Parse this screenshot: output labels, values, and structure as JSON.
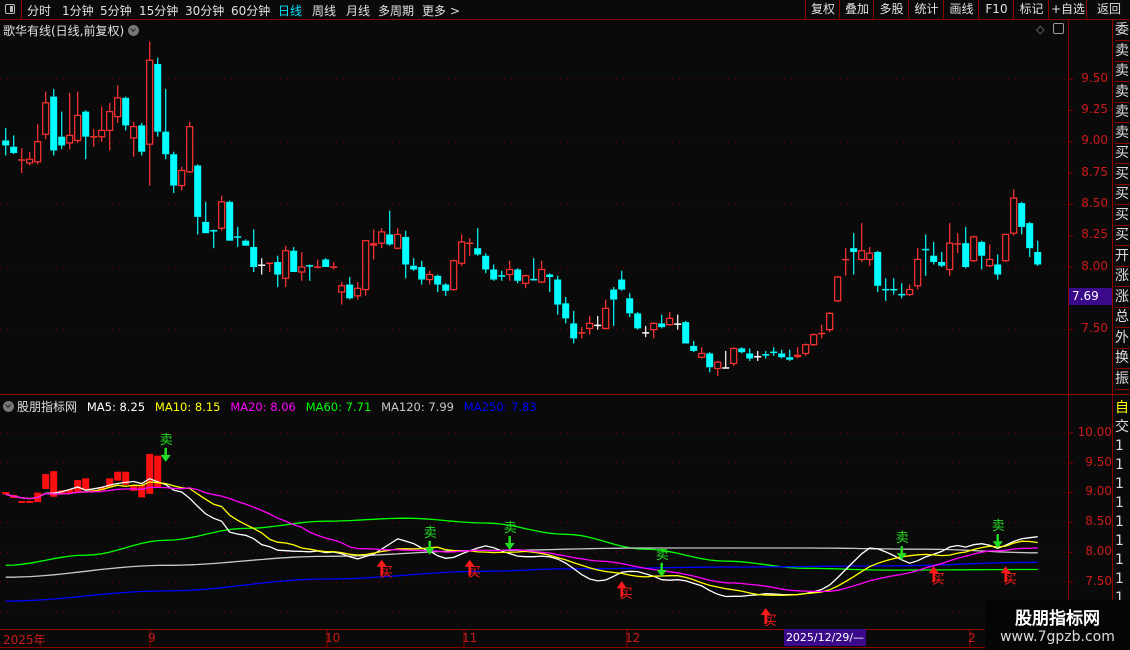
{
  "toolbar": {
    "tabs": [
      "分时",
      "1分钟",
      "5分钟",
      "15分钟",
      "30分钟",
      "60分钟",
      "日线",
      "周线",
      "月线",
      "多周期",
      "更多 >"
    ],
    "active_tab": "日线",
    "buttons": [
      "复权",
      "叠加",
      "多股",
      "统计",
      "画线",
      "F10",
      "标记",
      "+自选",
      "返回"
    ]
  },
  "main_panel": {
    "title": "歌华有线(日线,前复权)",
    "y_ticks": [
      "9.50",
      "9.25",
      "9.00",
      "8.75",
      "8.50",
      "8.25",
      "8.00",
      "7.50"
    ],
    "current_price_label": "7.69"
  },
  "indicator_panel": {
    "name": "股朋指标网",
    "ma_legend": [
      {
        "label": "MA5: 8.25",
        "color": "#ffffff"
      },
      {
        "label": "MA10: 8.15",
        "color": "#ffff00"
      },
      {
        "label": "MA20: 8.06",
        "color": "#ff00ff"
      },
      {
        "label": "MA60: 7.71",
        "color": "#00ff00"
      },
      {
        "label": "MA120: 7.99",
        "color": "#c8c8c8"
      },
      {
        "label": "MA250: 7.83",
        "color": "#0000ff"
      }
    ],
    "y_ticks": [
      "10.00",
      "9.50",
      "9.00",
      "8.50",
      "8.00",
      "7.50"
    ],
    "sell_label": "卖",
    "buy_label": "买"
  },
  "x_axis": {
    "labels": [
      "2025年",
      "9",
      "10",
      "11",
      "12",
      "2"
    ],
    "highlight_date": "2025/12/29/—"
  },
  "right_strip": {
    "top_chars": [
      "委",
      "卖",
      "卖",
      "卖",
      "卖",
      "卖",
      "买",
      "买",
      "买",
      "买",
      "买",
      "开",
      "涨",
      "涨",
      "总",
      "外",
      "换",
      "振"
    ],
    "bottom_chars": [
      "自",
      "交",
      "1",
      "1",
      "1",
      "1",
      "1",
      "1",
      "1",
      "1",
      "1",
      "1"
    ]
  },
  "watermark": {
    "title": "股朋指标网",
    "url": "www.7gpzb.com"
  },
  "colors": {
    "up": "#ff3333",
    "down": "#00ffff",
    "flat": "#ffffff",
    "grid": "#7a0000",
    "frame": "#8b0000",
    "sell": "#22dd22",
    "buy": "#ff1a1a"
  },
  "chart_data": {
    "type": "candlestick",
    "ylim_main": [
      7.1,
      9.85
    ],
    "ylim_indicator": [
      6.9,
      10.25
    ],
    "ohlc": [
      [
        9.01,
        9.11,
        8.89,
        8.97
      ],
      [
        8.96,
        9.05,
        8.9,
        8.91
      ],
      [
        8.85,
        8.95,
        8.75,
        8.86
      ],
      [
        8.83,
        8.92,
        8.81,
        8.86
      ],
      [
        8.84,
        9.14,
        8.82,
        9.0
      ],
      [
        9.06,
        9.4,
        9.02,
        9.31
      ],
      [
        9.36,
        9.42,
        8.89,
        8.93
      ],
      [
        9.04,
        9.24,
        8.94,
        8.97
      ],
      [
        8.99,
        9.39,
        8.94,
        9.05
      ],
      [
        9.01,
        9.4,
        8.99,
        9.21
      ],
      [
        9.24,
        9.25,
        8.86,
        9.04
      ],
      [
        9.035,
        9.1,
        8.96,
        9.045
      ],
      [
        9.04,
        9.28,
        9.0,
        9.09
      ],
      [
        9.09,
        9.31,
        8.93,
        9.24
      ],
      [
        9.2,
        9.45,
        9.15,
        9.35
      ],
      [
        9.35,
        9.36,
        9.09,
        9.13
      ],
      [
        9.03,
        9.16,
        8.88,
        9.12
      ],
      [
        9.13,
        9.15,
        8.89,
        8.92
      ],
      [
        8.98,
        9.8,
        8.65,
        9.65
      ],
      [
        9.62,
        9.67,
        9.04,
        9.08
      ],
      [
        9.08,
        9.42,
        8.86,
        8.9
      ],
      [
        8.9,
        8.92,
        8.59,
        8.65
      ],
      [
        8.65,
        8.8,
        8.61,
        8.77
      ],
      [
        8.76,
        9.16,
        8.75,
        9.12
      ],
      [
        8.81,
        8.82,
        8.26,
        8.4
      ],
      [
        8.36,
        8.52,
        8.27,
        8.27
      ],
      [
        8.295,
        8.3,
        8.15,
        8.285
      ],
      [
        8.31,
        8.57,
        8.29,
        8.52
      ],
      [
        8.52,
        8.53,
        8.21,
        8.21
      ],
      [
        8.245,
        8.32,
        8.16,
        8.235
      ],
      [
        8.21,
        8.22,
        8.17,
        8.17
      ],
      [
        8.16,
        8.3,
        7.96,
        8.0
      ],
      [
        8.02,
        8.07,
        7.94,
        8.02
      ],
      [
        8.025,
        8.03,
        7.96,
        8.035
      ],
      [
        8.04,
        8.09,
        7.84,
        7.94
      ],
      [
        7.91,
        8.17,
        7.84,
        8.13
      ],
      [
        8.13,
        8.16,
        7.96,
        7.96
      ],
      [
        7.96,
        8.12,
        7.89,
        8.0
      ],
      [
        8.015,
        8.02,
        7.89,
        8.005
      ],
      [
        7.995,
        8.06,
        7.99,
        8.005
      ],
      [
        8.06,
        8.07,
        8.0,
        8.0
      ],
      [
        7.995,
        8.04,
        7.98,
        8.005
      ],
      [
        7.8,
        7.88,
        7.7,
        7.85
      ],
      [
        7.86,
        7.92,
        7.74,
        7.75
      ],
      [
        7.77,
        7.88,
        7.74,
        7.83
      ],
      [
        7.82,
        8.21,
        7.77,
        8.21
      ],
      [
        8.17,
        8.3,
        8.06,
        8.19
      ],
      [
        8.19,
        8.31,
        8.15,
        8.28
      ],
      [
        8.26,
        8.45,
        8.17,
        8.18
      ],
      [
        8.15,
        8.31,
        8.14,
        8.26
      ],
      [
        8.24,
        8.29,
        7.91,
        8.02
      ],
      [
        8.01,
        8.07,
        7.97,
        7.98
      ],
      [
        8.0,
        8.05,
        7.86,
        7.9
      ],
      [
        7.9,
        7.97,
        7.86,
        7.94
      ],
      [
        7.93,
        7.94,
        7.8,
        7.86
      ],
      [
        7.86,
        7.87,
        7.77,
        7.81
      ],
      [
        7.82,
        8.06,
        7.81,
        8.05
      ],
      [
        8.03,
        8.26,
        8.01,
        8.2
      ],
      [
        8.185,
        8.23,
        8.09,
        8.195
      ],
      [
        8.15,
        8.31,
        8.09,
        8.1
      ],
      [
        8.09,
        8.11,
        7.95,
        7.98
      ],
      [
        7.98,
        8.02,
        7.89,
        7.9
      ],
      [
        7.935,
        7.97,
        7.89,
        7.925
      ],
      [
        7.94,
        8.05,
        7.89,
        7.98
      ],
      [
        7.98,
        7.99,
        7.87,
        7.89
      ],
      [
        7.87,
        7.94,
        7.83,
        7.93
      ],
      [
        7.905,
        8.07,
        7.89,
        7.895
      ],
      [
        7.88,
        8.05,
        7.87,
        7.98
      ],
      [
        7.94,
        7.95,
        7.8,
        7.92
      ],
      [
        7.9,
        7.93,
        7.62,
        7.7
      ],
      [
        7.71,
        7.76,
        7.55,
        7.59
      ],
      [
        7.55,
        7.65,
        7.39,
        7.43
      ],
      [
        7.47,
        7.52,
        7.43,
        7.48
      ],
      [
        7.51,
        7.61,
        7.46,
        7.55
      ],
      [
        7.54,
        7.61,
        7.5,
        7.54
      ],
      [
        7.51,
        7.74,
        7.5,
        7.67
      ],
      [
        7.82,
        7.84,
        7.53,
        7.74
      ],
      [
        7.9,
        7.97,
        7.81,
        7.82
      ],
      [
        7.75,
        7.79,
        7.6,
        7.63
      ],
      [
        7.63,
        7.64,
        7.5,
        7.51
      ],
      [
        7.48,
        7.53,
        7.44,
        7.48
      ],
      [
        7.5,
        7.56,
        7.43,
        7.55
      ],
      [
        7.55,
        7.62,
        7.51,
        7.52
      ],
      [
        7.54,
        7.64,
        7.53,
        7.59
      ],
      [
        7.55,
        7.62,
        7.5,
        7.55
      ],
      [
        7.56,
        7.57,
        7.39,
        7.39
      ],
      [
        7.37,
        7.41,
        7.32,
        7.33
      ],
      [
        7.28,
        7.36,
        7.27,
        7.31
      ],
      [
        7.31,
        7.32,
        7.16,
        7.2
      ],
      [
        7.19,
        7.25,
        7.13,
        7.24
      ],
      [
        7.2,
        7.33,
        7.19,
        7.2
      ],
      [
        7.23,
        7.36,
        7.21,
        7.35
      ],
      [
        7.35,
        7.36,
        7.31,
        7.32
      ],
      [
        7.31,
        7.35,
        7.25,
        7.27
      ],
      [
        7.29,
        7.33,
        7.25,
        7.29
      ],
      [
        7.305,
        7.33,
        7.27,
        7.295
      ],
      [
        7.325,
        7.36,
        7.29,
        7.315
      ],
      [
        7.31,
        7.34,
        7.27,
        7.28
      ],
      [
        7.28,
        7.34,
        7.25,
        7.26
      ],
      [
        7.28,
        7.36,
        7.27,
        7.3
      ],
      [
        7.31,
        7.39,
        7.29,
        7.38
      ],
      [
        7.38,
        7.47,
        7.37,
        7.46
      ],
      [
        7.465,
        7.54,
        7.43,
        7.475
      ],
      [
        7.5,
        7.64,
        7.48,
        7.63
      ],
      [
        7.73,
        7.93,
        7.72,
        7.92
      ],
      [
        8.055,
        8.15,
        7.93,
        8.065
      ],
      [
        8.15,
        8.27,
        7.94,
        8.12
      ],
      [
        8.06,
        8.35,
        8.04,
        8.13
      ],
      [
        8.06,
        8.16,
        8.01,
        8.11
      ],
      [
        8.12,
        8.13,
        7.8,
        7.85
      ],
      [
        7.825,
        7.91,
        7.73,
        7.815
      ],
      [
        7.825,
        7.91,
        7.78,
        7.815
      ],
      [
        7.785,
        7.87,
        7.75,
        7.775
      ],
      [
        7.78,
        7.86,
        7.77,
        7.82
      ],
      [
        7.85,
        8.15,
        7.82,
        8.06
      ],
      [
        8.145,
        8.26,
        7.93,
        8.135
      ],
      [
        8.09,
        8.2,
        8.02,
        8.04
      ],
      [
        8.04,
        8.12,
        8.0,
        8.01
      ],
      [
        7.98,
        8.35,
        7.93,
        8.19
      ],
      [
        8.18,
        8.27,
        8.11,
        8.19
      ],
      [
        8.19,
        8.32,
        7.99,
        8.0
      ],
      [
        8.05,
        8.25,
        8.04,
        8.24
      ],
      [
        8.2,
        8.21,
        7.98,
        8.09
      ],
      [
        8.01,
        8.18,
        8.0,
        8.06
      ],
      [
        8.02,
        8.1,
        7.9,
        7.94
      ],
      [
        8.05,
        8.26,
        8.04,
        8.26
      ],
      [
        8.27,
        8.62,
        8.25,
        8.55
      ],
      [
        8.51,
        8.52,
        8.26,
        8.32
      ],
      [
        8.35,
        8.36,
        8.08,
        8.15
      ],
      [
        8.12,
        8.21,
        8.01,
        8.02
      ]
    ],
    "indicator_bars_until_index": 19,
    "ma_computed": [
      {
        "period": 5,
        "color": "#ffffff"
      },
      {
        "period": 10,
        "color": "#ffff00"
      },
      {
        "period": 20,
        "color": "#ff00ff"
      }
    ],
    "ma_series": [
      {
        "name": "MA60",
        "color": "#00ff00",
        "points": [
          [
            0,
            7.78
          ],
          [
            10,
            7.95
          ],
          [
            20,
            8.2
          ],
          [
            30,
            8.4
          ],
          [
            40,
            8.52
          ],
          [
            50,
            8.57
          ],
          [
            60,
            8.49
          ],
          [
            70,
            8.3
          ],
          [
            80,
            8.05
          ],
          [
            90,
            7.85
          ],
          [
            100,
            7.73
          ],
          [
            110,
            7.7
          ],
          [
            129,
            7.71
          ]
        ]
      },
      {
        "name": "MA120",
        "color": "#c8c8c8",
        "points": [
          [
            0,
            7.58
          ],
          [
            20,
            7.78
          ],
          [
            40,
            7.93
          ],
          [
            60,
            8.03
          ],
          [
            80,
            8.07
          ],
          [
            100,
            8.07
          ],
          [
            115,
            8.05
          ],
          [
            129,
            7.99
          ]
        ]
      },
      {
        "name": "MA250",
        "color": "#0000ff",
        "points": [
          [
            0,
            7.18
          ],
          [
            20,
            7.35
          ],
          [
            40,
            7.55
          ],
          [
            60,
            7.68
          ],
          [
            70,
            7.72
          ],
          [
            90,
            7.75
          ],
          [
            110,
            7.77
          ],
          [
            129,
            7.83
          ]
        ]
      }
    ],
    "signals": [
      {
        "type": "sell",
        "index": 20,
        "price": 9.55
      },
      {
        "type": "sell",
        "index": 53,
        "price": 7.99
      },
      {
        "type": "sell",
        "index": 63,
        "price": 8.07
      },
      {
        "type": "sell",
        "index": 82,
        "price": 7.62
      },
      {
        "type": "sell",
        "index": 112,
        "price": 7.9
      },
      {
        "type": "sell",
        "index": 124,
        "price": 8.1
      },
      {
        "type": "buy",
        "index": 47,
        "price": 7.84
      },
      {
        "type": "buy",
        "index": 58,
        "price": 7.84
      },
      {
        "type": "buy",
        "index": 77,
        "price": 7.48
      },
      {
        "type": "buy",
        "index": 95,
        "price": 7.03
      },
      {
        "type": "buy",
        "index": 116,
        "price": 7.73
      },
      {
        "type": "buy",
        "index": 125,
        "price": 7.73
      }
    ]
  }
}
